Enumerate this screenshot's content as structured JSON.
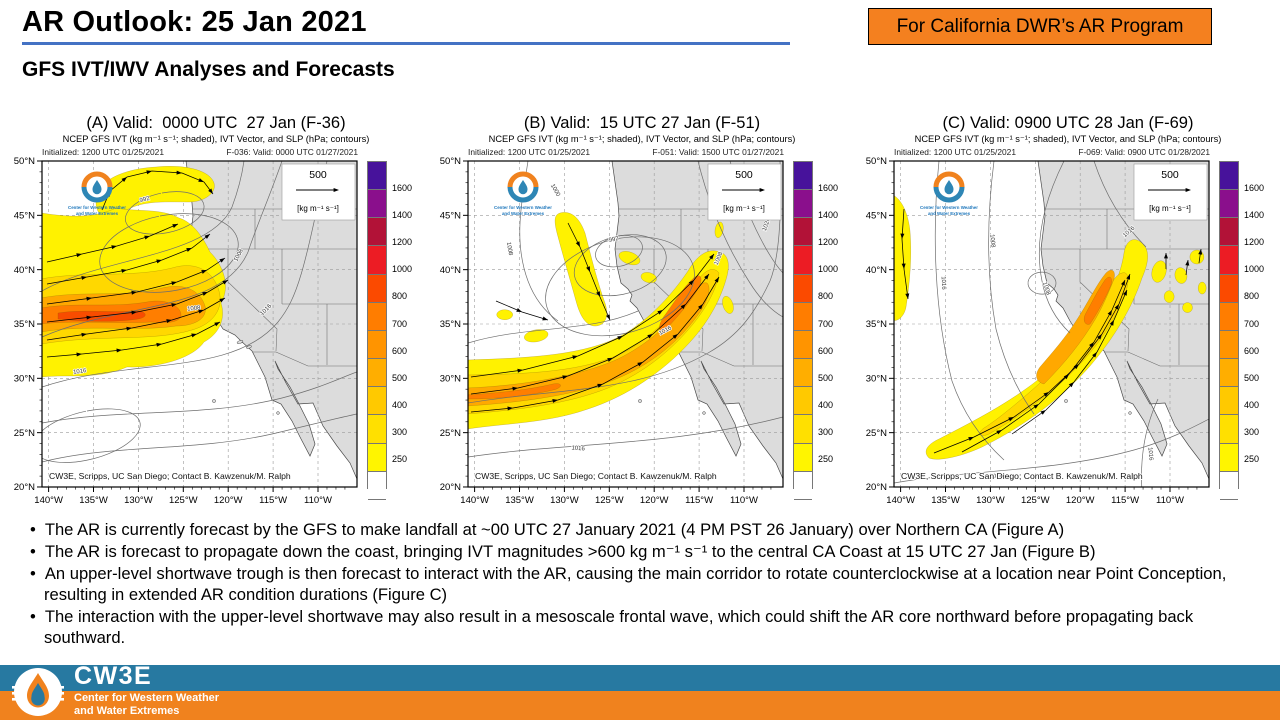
{
  "slide": {
    "title": "AR Outlook: 25 Jan 2021",
    "badge": "For California DWR’s AR Program",
    "subtitle": "GFS IVT/IWV Analyses and Forecasts",
    "accent_blue": "#4472C4",
    "badge_orange": "#F4801F"
  },
  "panels": [
    {
      "title": "(A) Valid:  0000 UTC  27 Jan (F-36)",
      "subtitle": "NCEP GFS IVT (kg m⁻¹ s⁻¹; shaded), IVT Vector, and SLP (hPa; contours)",
      "initialized": "Initialized: 1200 UTC 01/25/2021",
      "forecast_valid": "F-036: Valid: 0000 UTC 01/27/2021",
      "contour_labels": [
        "992",
        "1008",
        "1008",
        "1016",
        "1016"
      ]
    },
    {
      "title": "(B) Valid:  15 UTC 27 Jan (F-51)",
      "subtitle": "NCEP GFS IVT (kg m⁻¹ s⁻¹; shaded), IVT Vector, and SLP (hPa; contours)",
      "initialized": "Initialized: 1200 UTC 01/25/2021",
      "forecast_valid": "F-051: Valid: 1500 UTC 01/27/2021",
      "contour_labels": [
        "992",
        "1000",
        "1008",
        "1008",
        "1016",
        "1016",
        "1024"
      ]
    },
    {
      "title": "(C) Valid: 0900 UTC 28 Jan (F-69)",
      "subtitle": "NCEP GFS IVT (kg m⁻¹ s⁻¹; shaded), IVT Vector, and SLP (hPa; contours)",
      "initialized": "Initialized: 1200 UTC 01/25/2021",
      "forecast_valid": "F-069: Valid: 0900 UTC 01/28/2021",
      "contour_labels": [
        "1008",
        "1008",
        "1016",
        "1016",
        "1016",
        "1016"
      ]
    }
  ],
  "map": {
    "lat_ticks": [
      "50°N",
      "45°N",
      "40°N",
      "35°N",
      "30°N",
      "25°N",
      "20°N"
    ],
    "lon_ticks": [
      "140°W",
      "135°W",
      "130°W",
      "125°W",
      "120°W",
      "115°W",
      "110°W"
    ],
    "ref_value": "500",
    "ref_units": "[kg m⁻¹ s⁻¹]",
    "attribution": "CW3E, Scripps, UC San Diego; Contact B. Kawzenuk/M. Ralph",
    "logo_line1": "Center for Western Weather",
    "logo_line2": "and Water Extremes"
  },
  "colorbar": {
    "tick_labels": [
      "1600",
      "1400",
      "1200",
      "1000",
      "800",
      "700",
      "600",
      "500",
      "400",
      "300",
      "250"
    ],
    "colors_top_to_bottom": [
      "#47129B",
      "#8A0F8C",
      "#B21237",
      "#EC1C24",
      "#FB4A00",
      "#FF7D00",
      "#FF9400",
      "#FFAE00",
      "#FFC900",
      "#FFE000",
      "#FFF500",
      "#FFFFFF"
    ]
  },
  "bullets": [
    "The AR is currently forecast by the GFS to make landfall at ~00 UTC 27 January 2021 (4 PM PST 26 January) over Northern CA (Figure A)",
    "The AR is forecast to propagate down the coast, bringing IVT magnitudes >600 kg m⁻¹ s⁻¹ to the central CA Coast at 15 UTC 27 Jan (Figure B)",
    "An upper-level shortwave trough is then forecast to interact with the AR, causing the main corridor to rotate counterclockwise at a location near Point Conception, resulting in extended AR condition durations  (Figure C)",
    "The interaction with the upper-level shortwave may also result in a mesoscale frontal wave, which could shift the AR core northward before propagating back southward."
  ],
  "footer": {
    "brand": "CW3E",
    "tagline_line1": "Center for Western Weather",
    "tagline_line2": "and Water Extremes",
    "blue": "#2779A1",
    "orange": "#F0821E"
  }
}
